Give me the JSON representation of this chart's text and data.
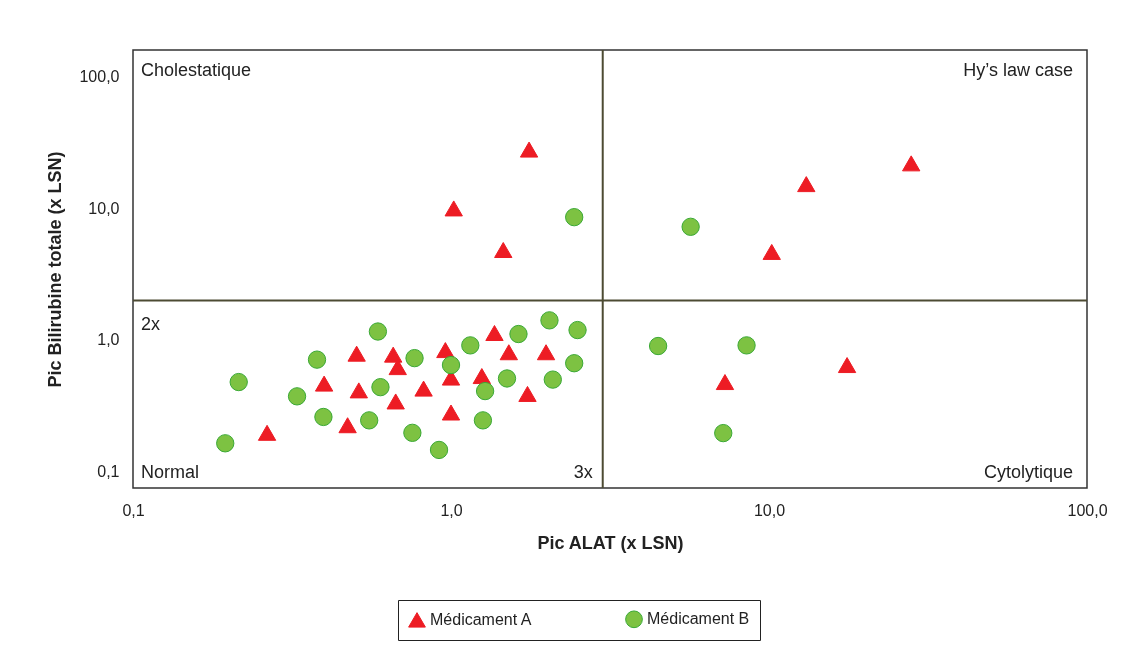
{
  "chart_data": {
    "type": "scatter",
    "xlabel": "Pic ALAT (x LSN)",
    "ylabel": "Pic Bilirubine totale (x LSN)",
    "log": "xy",
    "grid": false,
    "legend": "bottom",
    "xlim": [
      0.1,
      100
    ],
    "ylim": [
      0.075,
      160
    ],
    "xticks": [
      {
        "value": 0.1,
        "label": "0,1"
      },
      {
        "value": 1,
        "label": "1,0"
      },
      {
        "value": 10,
        "label": "10,0"
      },
      {
        "value": 100,
        "label": "100,0"
      }
    ],
    "yticks": [
      {
        "value": 0.1,
        "label": "0,1"
      },
      {
        "value": 1,
        "label": "1,0"
      },
      {
        "value": 10,
        "label": "10,0"
      },
      {
        "value": 100,
        "label": "100,0"
      }
    ],
    "ref_lines": [
      {
        "axis": "y",
        "value": 2,
        "label": "2x",
        "color": "#4d4b33"
      },
      {
        "axis": "x",
        "value": 3,
        "label": "3x",
        "color": "#4d4b33"
      }
    ],
    "annotations": [
      "Cholestatique",
      "Hy’s law case",
      "Normal",
      "Cytolytique"
    ],
    "series": [
      {
        "name": "Médicament A",
        "color": "#ed1c24",
        "marker": "triangle",
        "x": [
          0.505,
          0.658,
          0.68,
          0.399,
          0.513,
          0.67,
          0.473,
          0.264,
          0.82,
          0.96,
          1.0,
          1.0,
          1.25,
          1.37,
          1.52,
          1.99,
          1.74,
          1.02,
          1.76,
          1.46,
          10.2,
          13.1,
          28.0,
          7.27,
          17.6
        ],
        "values": [
          0.787,
          0.774,
          0.622,
          0.466,
          0.414,
          0.341,
          0.225,
          0.197,
          0.427,
          0.838,
          0.518,
          0.281,
          0.532,
          1.13,
          0.807,
          0.807,
          0.389,
          10.0,
          28.0,
          4.83,
          4.67,
          15.3,
          22.0,
          0.479,
          0.645
        ]
      },
      {
        "name": "Médicament B",
        "color": "#7dc242",
        "marker": "circle",
        "x": [
          0.589,
          0.379,
          0.215,
          0.328,
          0.397,
          0.195,
          0.553,
          0.768,
          0.6,
          0.756,
          0.917,
          1.0,
          1.15,
          1.28,
          1.26,
          1.5,
          1.63,
          2.04,
          2.09,
          2.44,
          2.5,
          2.44,
          5.67,
          4.48,
          8.5,
          7.18
        ],
        "values": [
          1.16,
          0.709,
          0.479,
          0.373,
          0.26,
          0.164,
          0.245,
          0.728,
          0.438,
          0.197,
          0.146,
          0.645,
          0.91,
          0.409,
          0.245,
          0.51,
          1.11,
          1.41,
          0.5,
          0.666,
          1.19,
          8.58,
          7.25,
          0.9,
          0.91,
          0.196
        ]
      }
    ]
  }
}
